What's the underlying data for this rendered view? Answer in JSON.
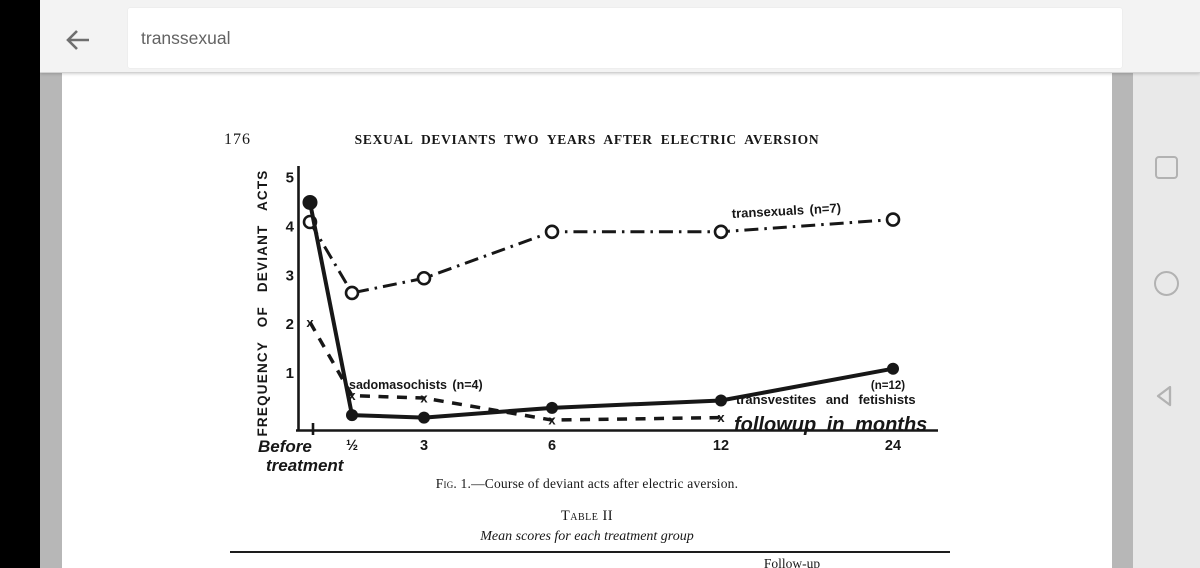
{
  "colors": {
    "page_bg": "#ffffff",
    "app_bar_bg": "#f3f3f3",
    "canvas_bg": "#b7b7b7",
    "nav_bg": "#e9e9e9",
    "nav_icon": "#b2b2b2",
    "ink": "#171717",
    "search_text": "#636363"
  },
  "browser": {
    "back_icon": "arrow-left",
    "search_value": "transsexual"
  },
  "nav_bar": {
    "icons": [
      "recents-square",
      "home-circle",
      "back-triangle"
    ]
  },
  "page": {
    "page_number": "176",
    "running_head": "SEXUAL DEVIANTS TWO YEARS AFTER ELECTRIC AVERSION",
    "figure_caption_prefix": "Fig. 1.",
    "figure_caption_rest": "—Course of deviant acts after electric aversion.",
    "table_title_prefix": "Table",
    "table_title_suffix": " II",
    "table_subtitle": "Mean scores for each treatment group",
    "partial_bottom_text": "Follow-up"
  },
  "chart_data": {
    "type": "line",
    "title": "",
    "ylabel": "FREQUENCY OF DEVIANT ACTS",
    "xlabel": "followup in months",
    "categories": [
      "Before treatment",
      "½",
      "3",
      "6",
      "12",
      "24"
    ],
    "x_months": [
      0,
      0.5,
      3,
      6,
      12,
      24
    ],
    "ylim": [
      0,
      5
    ],
    "y_ticks": [
      1,
      2,
      3,
      4,
      5
    ],
    "x_tick_labels": [
      "½",
      "3",
      "6",
      "12",
      "24"
    ],
    "grid": false,
    "legend_position": "inline-annotations",
    "series": [
      {
        "name": "transexuals (n=7)",
        "style": "dashdot",
        "marker": "open-circle",
        "values": [
          4.1,
          2.65,
          2.95,
          3.9,
          3.9,
          4.15
        ]
      },
      {
        "name": "transvestites and fetishists (n=12)",
        "style": "solid",
        "marker": "filled-circle",
        "values": [
          4.5,
          0.15,
          0.1,
          0.3,
          0.45,
          1.1
        ]
      },
      {
        "name": "sadomasochists (n=4)",
        "style": "dashed",
        "marker": "x",
        "values": [
          2.05,
          0.55,
          0.5,
          0.05,
          0.1,
          null
        ]
      }
    ],
    "annotations": {
      "transexuals_label": "transexuals (n=7)",
      "sadomasochists_label": "sadomasochists (n=4)",
      "n12_label": "(n=12)",
      "transvestites_label": "transvestites and fetishists",
      "followup_label": "followup in months",
      "before_line1": "Before",
      "before_line2": "treatment"
    }
  }
}
